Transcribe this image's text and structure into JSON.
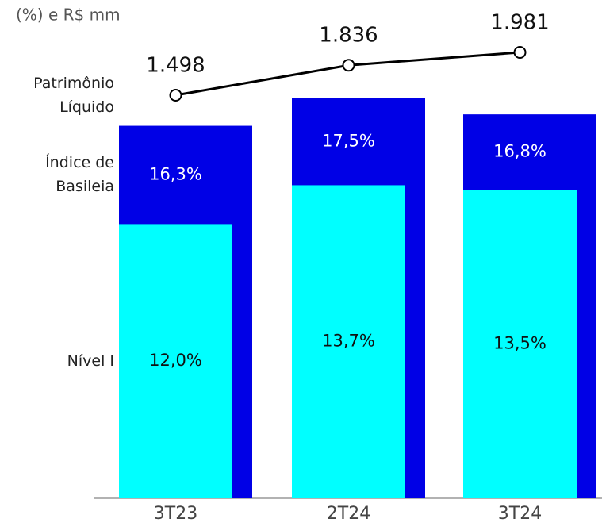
{
  "chart_data": {
    "type": "bar",
    "title": "(%) e R$ mm",
    "categories": [
      "3T23",
      "2T24",
      "3T24"
    ],
    "series": [
      {
        "name": "Patrimônio Líquido",
        "type": "line",
        "axis": "y2",
        "color": "#000000",
        "values": [
          1498,
          1836,
          1981
        ],
        "value_labels": [
          "1.498",
          "1.836",
          "1.981"
        ]
      },
      {
        "name": "Índice de Basileia",
        "color": "#0000e6",
        "values": [
          16.3,
          17.5,
          16.8
        ],
        "value_labels": [
          "16,3%",
          "17,5%",
          "16,8%"
        ]
      },
      {
        "name": "Nível I",
        "color": "#00ffff",
        "values": [
          12.0,
          13.7,
          13.5
        ],
        "value_labels": [
          "12,0%",
          "13,7%",
          "13,5%"
        ]
      }
    ]
  }
}
